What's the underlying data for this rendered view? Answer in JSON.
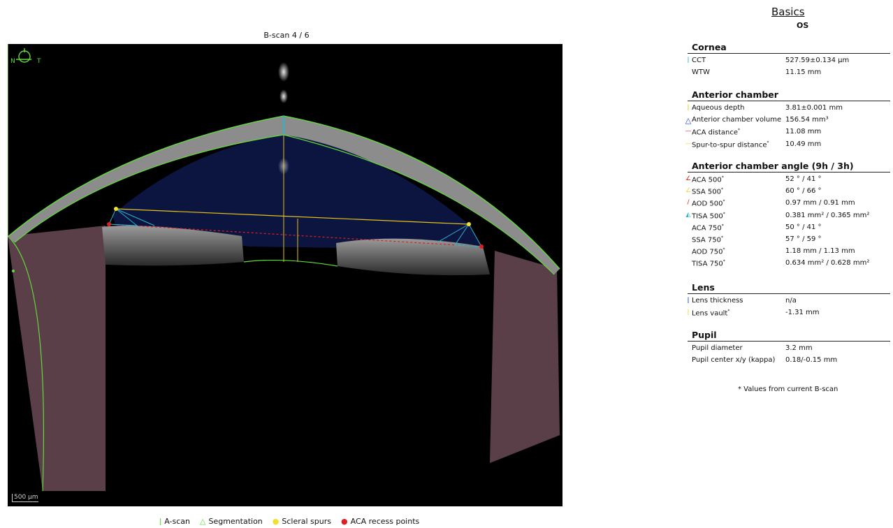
{
  "scan": {
    "title": "B-scan  4    / 6",
    "orient_n": "N",
    "orient_t": "T",
    "scalebar": "500 µm"
  },
  "legend": {
    "ascan": "A-scan",
    "segmentation": "Segmentation",
    "scleral_spurs": "Scleral spurs",
    "aca_recess": "ACA recess points"
  },
  "panel": {
    "title": "Basics",
    "eye": "OS",
    "cornea": {
      "header": "Cornea",
      "rows": [
        {
          "label": "CCT",
          "value": "527.59±0.134 µm"
        },
        {
          "label": "WTW",
          "value": "11.15 mm"
        }
      ]
    },
    "anterior_chamber": {
      "header": "Anterior chamber",
      "rows": [
        {
          "label": "Aqueous depth",
          "value": "3.81±0.001 mm"
        },
        {
          "label": "Anterior chamber volume",
          "value": "156.54 mm³"
        },
        {
          "label": "ACA distance",
          "value": "11.08 mm"
        },
        {
          "label": "Spur-to-spur distance",
          "value": "10.49 mm"
        }
      ]
    },
    "angle": {
      "header": "Anterior chamber angle (9h / 3h)",
      "rows": [
        {
          "label": "ACA 500",
          "value": "52 ° / 41 °"
        },
        {
          "label": "SSA 500",
          "value": "60 ° / 66 °"
        },
        {
          "label": "AOD 500",
          "value": "0.97 mm / 0.91 mm"
        },
        {
          "label": "TISA 500",
          "value": "0.381 mm² / 0.365 mm²"
        },
        {
          "label": "ACA 750",
          "value": "50 ° / 41 °"
        },
        {
          "label": "SSA 750",
          "value": "57 ° / 59 °"
        },
        {
          "label": "AOD 750",
          "value": "1.18 mm / 1.13 mm"
        },
        {
          "label": "TISA 750",
          "value": "0.634 mm² / 0.628 mm²"
        }
      ]
    },
    "lens": {
      "header": "Lens",
      "rows": [
        {
          "label": "Lens thickness",
          "value": "n/a"
        },
        {
          "label": "Lens vault",
          "value": "-1.31 mm"
        }
      ]
    },
    "pupil": {
      "header": "Pupil",
      "rows": [
        {
          "label": "Pupil diameter",
          "value": "3.2 mm"
        },
        {
          "label": "Pupil center x/y (kappa)",
          "value": "0.18/-0.15 mm"
        }
      ]
    },
    "note": "* Values from current B-scan",
    "colors": {
      "cct": "#29b6c9",
      "aqueous": "#e8c31a",
      "volume": "#1b3fd6",
      "aca_distance": "#e02020",
      "spur": "#f0d040",
      "aca": "#e02020",
      "ssa": "#f0d040",
      "aod": "#e02020",
      "tisa": "#29b6c9",
      "lens_thickness": "#1b3fd6",
      "lens_vault": "#f0d040"
    }
  }
}
